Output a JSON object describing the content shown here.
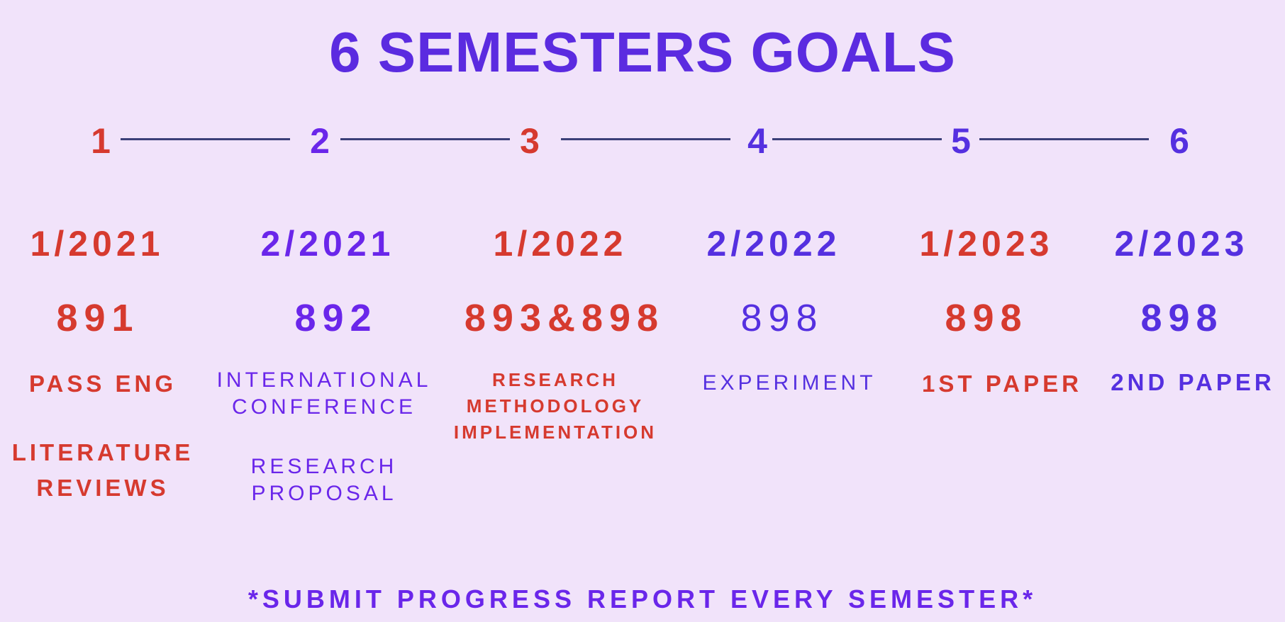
{
  "title": "6 SEMESTERS GOALS",
  "colors": {
    "background": "#f1e3fa",
    "red": "#d63a2f",
    "purple": "#6a26ea",
    "violet": "#5530e0",
    "connector": "#3b3f78"
  },
  "steps": [
    "1",
    "2",
    "3",
    "4",
    "5",
    "6"
  ],
  "semesters": [
    "1/2021",
    "2/2021",
    "1/2022",
    "2/2022",
    "1/2023",
    "2/2023"
  ],
  "codes": [
    "891",
    "892",
    "893&898",
    "898",
    "898",
    "898"
  ],
  "goals": {
    "col1": {
      "line1": "PASS ENG",
      "line2": "LITERATURE",
      "line3": "REVIEWS"
    },
    "col2": {
      "line1": "INTERNATIONAL",
      "line2": "CONFERENCE",
      "line3": "RESEARCH",
      "line4": "PROPOSAL"
    },
    "col3": {
      "line1": "RESEARCH",
      "line2": "METHODOLOGY",
      "line3": "IMPLEMENTATION"
    },
    "col4": {
      "line1": "EXPERIMENT"
    },
    "col5": {
      "line1": "1ST PAPER"
    },
    "col6": {
      "line1": "2ND PAPER"
    }
  },
  "footer": "*SUBMIT PROGRESS REPORT EVERY SEMESTER*"
}
